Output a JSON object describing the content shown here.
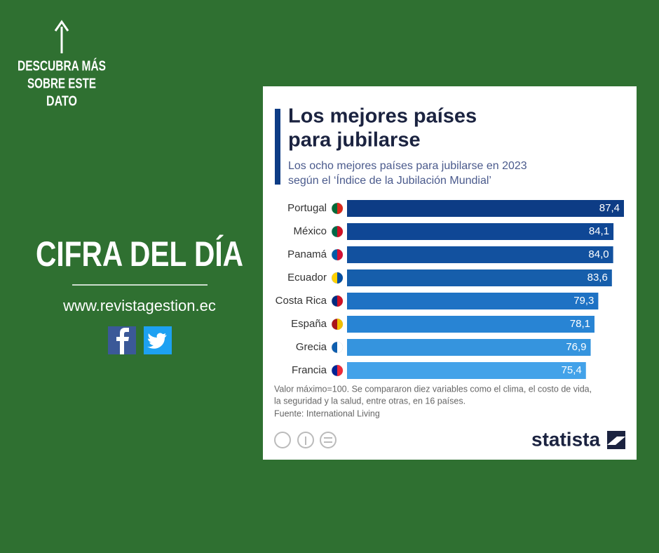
{
  "page": {
    "prompt": [
      "DESCUBRA MÁS",
      "SOBRE ESTE",
      "DATO"
    ],
    "headline": "CIFRA DEL DÍA",
    "website": "www.revistagestion.ec"
  },
  "chart_data": {
    "type": "bar",
    "orientation": "horizontal",
    "title": [
      "Los mejores países",
      "para jubilarse"
    ],
    "subtitle": [
      "Los ocho mejores países para jubilarse en 2023",
      "según el ‘Índice de la Jubilación Mundial’"
    ],
    "categories": [
      "Portugal",
      "México",
      "Panamá",
      "Ecuador",
      "Costa Rica",
      "España",
      "Grecia",
      "Francia"
    ],
    "values": [
      87.4,
      84.1,
      84.0,
      83.6,
      79.3,
      78.1,
      76.9,
      75.4
    ],
    "value_labels": [
      "87,4",
      "84,1",
      "84,0",
      "83,6",
      "79,3",
      "78,1",
      "76,9",
      "75,4"
    ],
    "colors": [
      "#0d3c85",
      "#0f4795",
      "#12519f",
      "#165eab",
      "#1e72c4",
      "#2884d4",
      "#3594de",
      "#43a2e9"
    ],
    "notes": [
      "Valor máximo=100. Se compararon diez variables como el clima, el costo de vida,",
      "la seguridad y la salud, entre otras, en 16 países."
    ],
    "source": "Fuente: International Living",
    "brand": "statista"
  }
}
